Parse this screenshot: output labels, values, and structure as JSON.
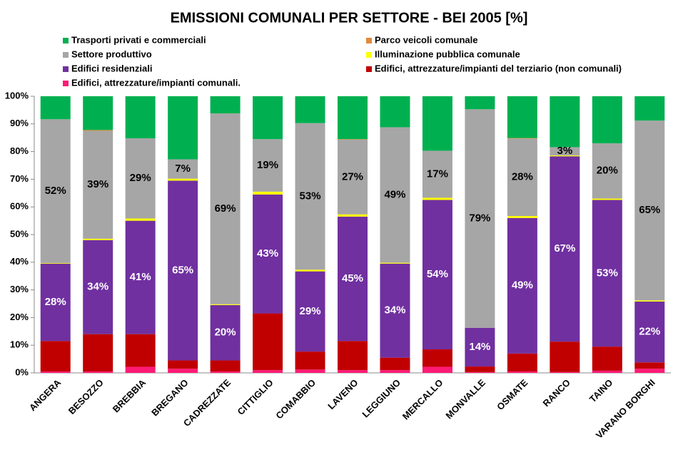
{
  "chart_data": {
    "type": "stacked_bar_percent",
    "title": "EMISSIONI COMUNALI PER SETTORE - BEI 2005 [%]",
    "categories": [
      "ANGERA",
      "BESOZZO",
      "BREBBIA",
      "BREGANO",
      "CADREZZATE",
      "CITTIGLIO",
      "COMABBIO",
      "LAVENO",
      "LEGGIUNO",
      "MERCALLO",
      "MONVALLE",
      "OSMATE",
      "RANCO",
      "TAINO",
      "VARANO BORGHI"
    ],
    "ylim": [
      0,
      100
    ],
    "yticks": [
      {
        "value": 0,
        "label": "0%"
      },
      {
        "value": 10,
        "label": "10%"
      },
      {
        "value": 20,
        "label": "20%"
      },
      {
        "value": 30,
        "label": "30%"
      },
      {
        "value": 40,
        "label": "40%"
      },
      {
        "value": 50,
        "label": "50%"
      },
      {
        "value": 60,
        "label": "60%"
      },
      {
        "value": 70,
        "label": "70%"
      },
      {
        "value": 80,
        "label": "80%"
      },
      {
        "value": 90,
        "label": "90%"
      },
      {
        "value": 100,
        "label": "100%"
      }
    ],
    "series": [
      {
        "name": "Edifici, attrezzature/impianti comunali.",
        "color": "#ff1a75",
        "values": [
          0.5,
          0.5,
          2.2,
          1.5,
          0.5,
          1,
          1.2,
          1,
          1,
          2.2,
          0.3,
          0.5,
          0.3,
          0.8,
          1.5
        ]
      },
      {
        "name": "Edifici, attrezzature/impianti del terziario (non comunali)",
        "color": "#c00000",
        "values": [
          11,
          13.5,
          11.8,
          3,
          4,
          20.5,
          6.5,
          10.5,
          4.5,
          6.3,
          2,
          6.5,
          11,
          8.7,
          2.3
        ]
      },
      {
        "name": "Edifici residenziali",
        "color": "#7030a0",
        "values": [
          28,
          34,
          41,
          65,
          20,
          43,
          29,
          45,
          34,
          54,
          14,
          49,
          67,
          53,
          22
        ],
        "value_labels": [
          "28%",
          "34%",
          "41%",
          "65%",
          "20%",
          "43%",
          "29%",
          "45%",
          "34%",
          "54%",
          "14%",
          "49%",
          "67%",
          "53%",
          "22%"
        ]
      },
      {
        "name": "Illuminazione pubblica comunale",
        "color": "#ffff00",
        "values": [
          0.2,
          0.5,
          0.8,
          0.7,
          0.3,
          1,
          0.6,
          0.8,
          0.3,
          0.8,
          0,
          0.7,
          0.3,
          0.5,
          0.4
        ]
      },
      {
        "name": "Settore produttivo",
        "color": "#a6a6a6",
        "values": [
          52,
          39,
          29,
          7,
          69,
          19,
          53,
          27,
          49,
          17,
          79,
          28,
          3,
          20,
          65
        ],
        "value_labels": [
          "52%",
          "39%",
          "29%",
          "7%",
          "69%",
          "19%",
          "53%",
          "27%",
          "49%",
          "17%",
          "79%",
          "28%",
          "3%",
          "20%",
          "65%"
        ]
      },
      {
        "name": "Parco veicoli comunale",
        "color": "#e08a3c",
        "values": [
          0,
          0.3,
          0,
          0,
          0,
          0,
          0,
          0.2,
          0,
          0,
          0,
          0.2,
          0,
          0,
          0
        ]
      },
      {
        "name": "Trasporti privati e commerciali",
        "color": "#00b050",
        "values": [
          8.3,
          12.2,
          15.2,
          22.8,
          6.2,
          15.5,
          9.7,
          15.5,
          11.2,
          19.7,
          4.7,
          15.1,
          18.4,
          17,
          8.8
        ]
      }
    ]
  }
}
